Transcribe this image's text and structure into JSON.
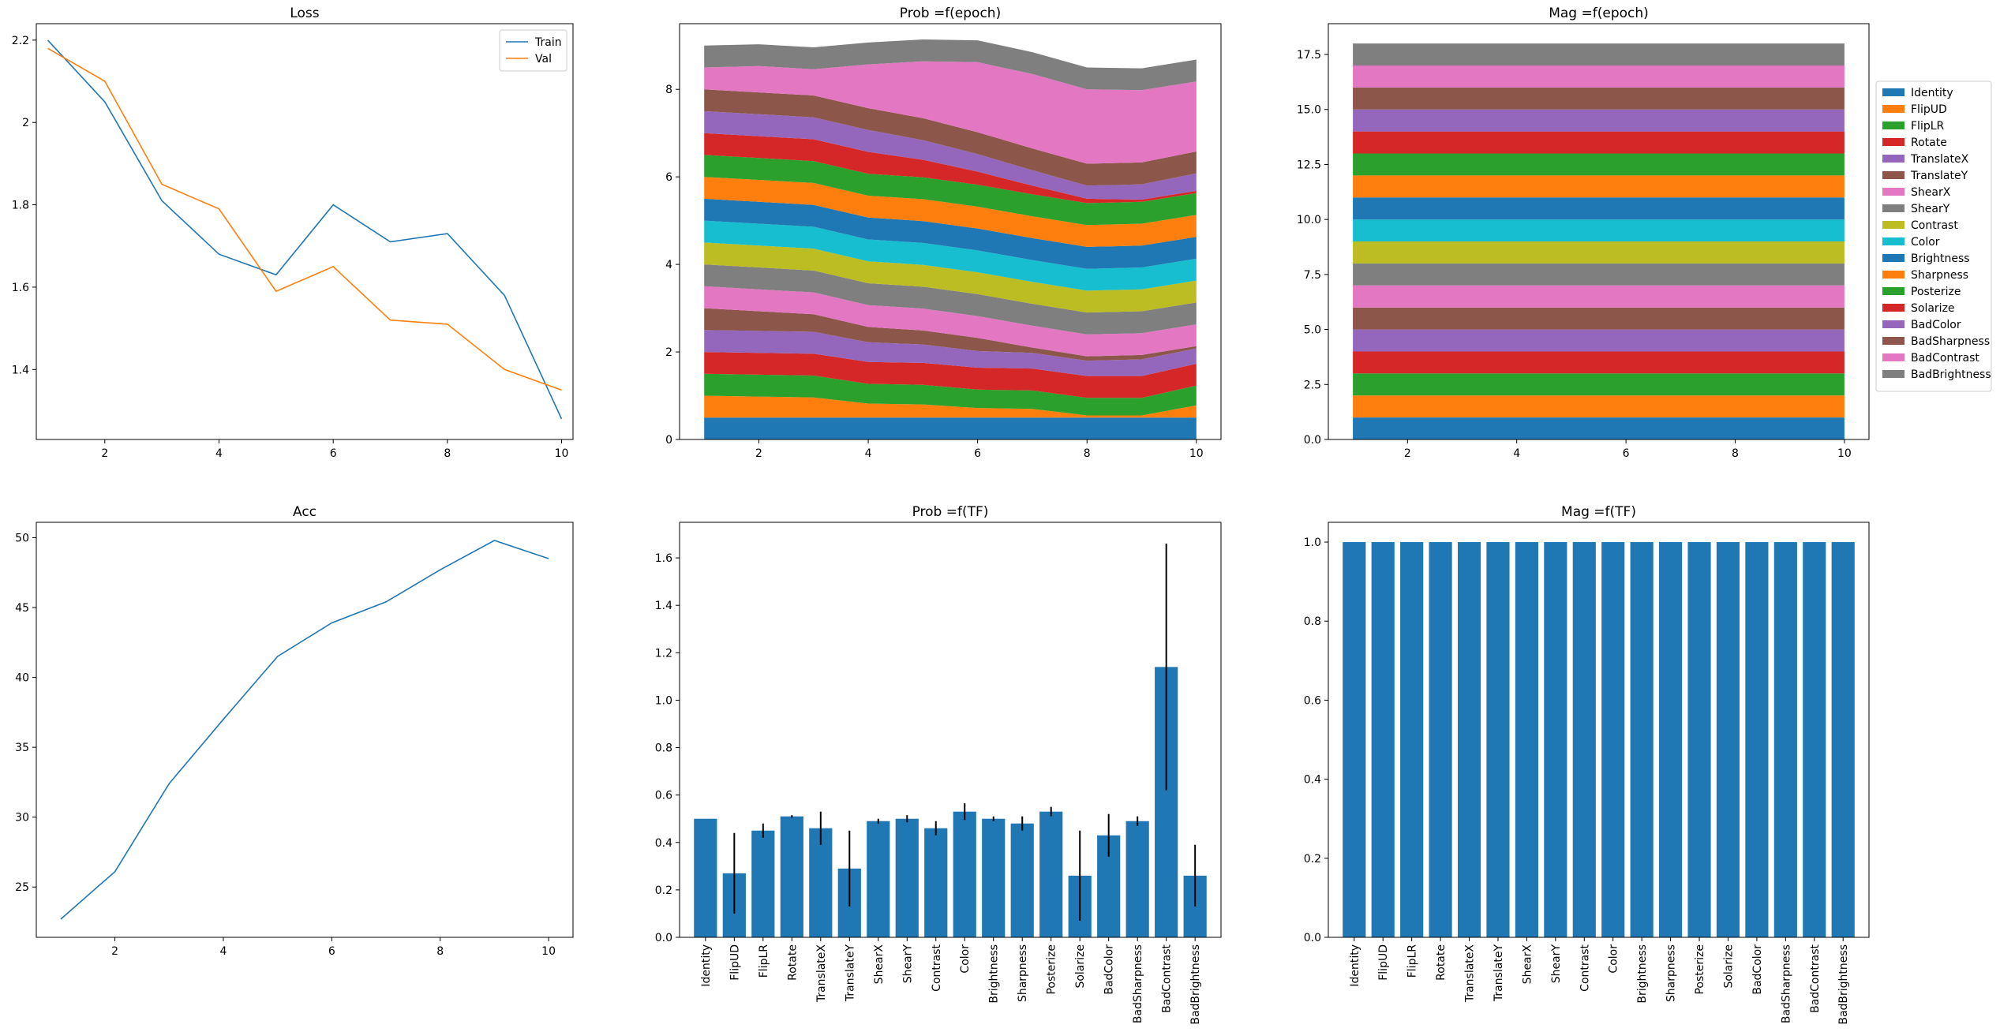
{
  "tf_names": [
    "Identity",
    "FlipUD",
    "FlipLR",
    "Rotate",
    "TranslateX",
    "TranslateY",
    "ShearX",
    "ShearY",
    "Contrast",
    "Color",
    "Brightness",
    "Sharpness",
    "Posterize",
    "Solarize",
    "BadColor",
    "BadSharpness",
    "BadContrast",
    "BadBrightness"
  ],
  "tf_colors": [
    "#1f77b4",
    "#ff7f0e",
    "#2ca02c",
    "#d62728",
    "#9467bd",
    "#8c564b",
    "#e377c2",
    "#7f7f7f",
    "#bcbd22",
    "#17becf",
    "#1f77b4",
    "#ff7f0e",
    "#2ca02c",
    "#d62728",
    "#9467bd",
    "#8c564b",
    "#e377c2",
    "#7f7f7f"
  ],
  "chart_data": [
    {
      "id": "loss",
      "type": "line",
      "title": "Loss",
      "xlim": [
        0.8,
        10.2
      ],
      "ylim": [
        1.23,
        2.24
      ],
      "xticks": [
        2,
        4,
        6,
        8,
        10
      ],
      "yticks": [
        1.4,
        1.6,
        1.8,
        2.0,
        2.2
      ],
      "legend": "upper right",
      "series": [
        {
          "name": "Train",
          "color": "#1f77b4",
          "x": [
            1,
            2,
            3,
            4,
            5,
            6,
            7,
            8,
            9,
            10
          ],
          "y": [
            2.2,
            2.05,
            1.81,
            1.68,
            1.63,
            1.8,
            1.71,
            1.73,
            1.58,
            1.28
          ]
        },
        {
          "name": "Val",
          "color": "#ff7f0e",
          "x": [
            1,
            2,
            3,
            4,
            5,
            6,
            7,
            8,
            9,
            10
          ],
          "y": [
            2.18,
            2.1,
            1.85,
            1.79,
            1.59,
            1.65,
            1.52,
            1.51,
            1.4,
            1.35
          ]
        }
      ]
    },
    {
      "id": "prob_epoch",
      "type": "area",
      "stacked": true,
      "title": "Prob =f(epoch)",
      "xlim": [
        0.55,
        10.45
      ],
      "ylim": [
        0,
        9.5
      ],
      "xticks": [
        2,
        4,
        6,
        8,
        10
      ],
      "yticks": [
        0,
        2,
        4,
        6,
        8
      ],
      "x": [
        1,
        2,
        3,
        4,
        5,
        6,
        7,
        8,
        9,
        10
      ],
      "series_values": [
        [
          0.5,
          0.5,
          0.5,
          0.5,
          0.5,
          0.5,
          0.5,
          0.5,
          0.5,
          0.5
        ],
        [
          0.5,
          0.48,
          0.46,
          0.32,
          0.3,
          0.22,
          0.2,
          0.05,
          0.05,
          0.28
        ],
        [
          0.5,
          0.5,
          0.5,
          0.45,
          0.45,
          0.42,
          0.42,
          0.4,
          0.4,
          0.45
        ],
        [
          0.5,
          0.5,
          0.5,
          0.5,
          0.5,
          0.5,
          0.5,
          0.5,
          0.5,
          0.5
        ],
        [
          0.5,
          0.5,
          0.5,
          0.45,
          0.42,
          0.38,
          0.36,
          0.35,
          0.38,
          0.35
        ],
        [
          0.5,
          0.45,
          0.4,
          0.35,
          0.32,
          0.3,
          0.12,
          0.1,
          0.1,
          0.05
        ],
        [
          0.5,
          0.5,
          0.5,
          0.5,
          0.5,
          0.5,
          0.5,
          0.5,
          0.5,
          0.5
        ],
        [
          0.5,
          0.5,
          0.5,
          0.5,
          0.5,
          0.5,
          0.5,
          0.5,
          0.5,
          0.5
        ],
        [
          0.5,
          0.5,
          0.5,
          0.5,
          0.5,
          0.5,
          0.5,
          0.5,
          0.5,
          0.5
        ],
        [
          0.5,
          0.5,
          0.5,
          0.5,
          0.5,
          0.5,
          0.5,
          0.5,
          0.5,
          0.5
        ],
        [
          0.5,
          0.5,
          0.5,
          0.5,
          0.5,
          0.5,
          0.5,
          0.5,
          0.5,
          0.5
        ],
        [
          0.5,
          0.5,
          0.5,
          0.5,
          0.5,
          0.5,
          0.5,
          0.5,
          0.5,
          0.5
        ],
        [
          0.5,
          0.5,
          0.5,
          0.5,
          0.5,
          0.5,
          0.5,
          0.5,
          0.5,
          0.5
        ],
        [
          0.5,
          0.5,
          0.5,
          0.5,
          0.4,
          0.3,
          0.2,
          0.1,
          0.05,
          0.05
        ],
        [
          0.5,
          0.5,
          0.5,
          0.5,
          0.45,
          0.4,
          0.35,
          0.3,
          0.35,
          0.4
        ],
        [
          0.5,
          0.5,
          0.5,
          0.5,
          0.5,
          0.5,
          0.5,
          0.5,
          0.5,
          0.5
        ],
        [
          0.5,
          0.6,
          0.6,
          1.0,
          1.3,
          1.6,
          1.7,
          1.7,
          1.65,
          1.6
        ],
        [
          0.5,
          0.5,
          0.5,
          0.5,
          0.5,
          0.5,
          0.5,
          0.5,
          0.5,
          0.5
        ]
      ]
    },
    {
      "id": "mag_epoch",
      "type": "area",
      "stacked": true,
      "title": "Mag =f(epoch)",
      "xlim": [
        0.55,
        10.45
      ],
      "ylim": [
        0,
        18.9
      ],
      "xticks": [
        2,
        4,
        6,
        8,
        10
      ],
      "yticks": [
        0.0,
        2.5,
        5.0,
        7.5,
        10.0,
        12.5,
        15.0,
        17.5
      ],
      "ytick_labels": [
        "0.0",
        "2.5",
        "5.0",
        "7.5",
        "10.0",
        "12.5",
        "15.0",
        "17.5"
      ],
      "legend": "outside right",
      "x": [
        1,
        2,
        3,
        4,
        5,
        6,
        7,
        8,
        9,
        10
      ],
      "series_value": 1.0
    },
    {
      "id": "acc",
      "type": "line",
      "title": "Acc",
      "xlim": [
        0.55,
        10.45
      ],
      "ylim": [
        21.4,
        51.1
      ],
      "xticks": [
        2,
        4,
        6,
        8,
        10
      ],
      "yticks": [
        25,
        30,
        35,
        40,
        45,
        50
      ],
      "series": [
        {
          "color": "#1f77b4",
          "x": [
            1,
            2,
            3,
            4,
            5,
            6,
            7,
            8,
            9,
            10
          ],
          "y": [
            22.7,
            26.1,
            32.4,
            37.0,
            41.5,
            43.9,
            45.4,
            47.7,
            49.8,
            48.5
          ]
        }
      ]
    },
    {
      "id": "prob_tf",
      "type": "bar",
      "title": "Prob =f(TF)",
      "ylim": [
        0,
        1.75
      ],
      "yticks": [
        0.0,
        0.2,
        0.4,
        0.6,
        0.8,
        1.0,
        1.2,
        1.4,
        1.6
      ],
      "ytick_labels": [
        "0.0",
        "0.2",
        "0.4",
        "0.6",
        "0.8",
        "1.0",
        "1.2",
        "1.4",
        "1.6"
      ],
      "values": [
        0.5,
        0.27,
        0.45,
        0.51,
        0.46,
        0.29,
        0.49,
        0.5,
        0.46,
        0.53,
        0.5,
        0.48,
        0.53,
        0.26,
        0.43,
        0.49,
        1.14,
        0.26
      ],
      "errors": [
        0.0,
        0.17,
        0.03,
        0.005,
        0.07,
        0.16,
        0.01,
        0.015,
        0.03,
        0.035,
        0.01,
        0.03,
        0.02,
        0.19,
        0.09,
        0.02,
        0.52,
        0.13
      ]
    },
    {
      "id": "mag_tf",
      "type": "bar",
      "title": "Mag =f(TF)",
      "ylim": [
        0,
        1.05
      ],
      "yticks": [
        0.0,
        0.2,
        0.4,
        0.6,
        0.8,
        1.0
      ],
      "ytick_labels": [
        "0.0",
        "0.2",
        "0.4",
        "0.6",
        "0.8",
        "1.0"
      ],
      "values": [
        1,
        1,
        1,
        1,
        1,
        1,
        1,
        1,
        1,
        1,
        1,
        1,
        1,
        1,
        1,
        1,
        1,
        1
      ]
    }
  ]
}
